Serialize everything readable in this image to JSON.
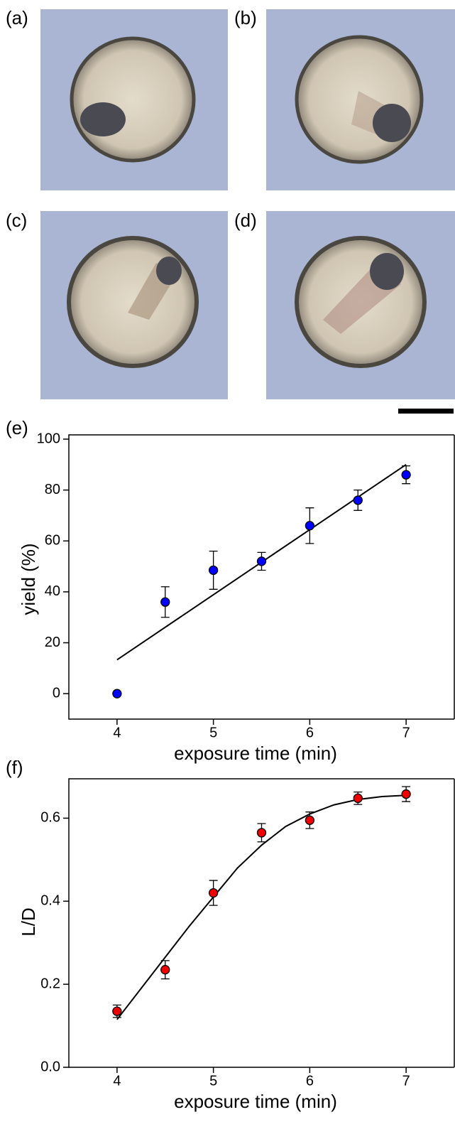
{
  "panel_labels": [
    "(a)",
    "(b)",
    "(c)",
    "(d)"
  ],
  "chart_data": [
    {
      "type": "scatter",
      "panel_label": "(e)",
      "x_label": "exposure time (min)",
      "y_label": "yield (%)",
      "xlim": [
        3.5,
        7.5
      ],
      "xticks": [
        4,
        5,
        6,
        7
      ],
      "ylim": [
        -10,
        100
      ],
      "yticks": [
        0,
        20,
        40,
        60,
        80,
        100
      ],
      "series": [
        {
          "color": "#0000ff",
          "x": [
            4,
            4.5,
            5,
            5.5,
            6,
            6.5,
            7
          ],
          "values": [
            0,
            36,
            48.5,
            52,
            66,
            76,
            86
          ],
          "errors": [
            0,
            6,
            7.5,
            3.5,
            7,
            4,
            3.5
          ]
        }
      ],
      "fit": {
        "x": [
          4,
          7
        ],
        "values": [
          13.3,
          90
        ]
      }
    },
    {
      "type": "scatter",
      "panel_label": "(f)",
      "x_label": "exposure time (min)",
      "y_label": "L/D",
      "xlim": [
        3.5,
        7.5
      ],
      "xticks": [
        4,
        5,
        6,
        7
      ],
      "ylim": [
        0,
        0.7
      ],
      "yticks": [
        {
          "value": 0,
          "label": "0.0"
        },
        0.2,
        0.4,
        0.6
      ],
      "series": [
        {
          "color": "#ee0000",
          "x": [
            4,
            4.5,
            5,
            5.5,
            6,
            6.5,
            7
          ],
          "values": [
            0.135,
            0.235,
            0.42,
            0.565,
            0.595,
            0.648,
            0.658
          ],
          "errors": [
            0.015,
            0.022,
            0.03,
            0.022,
            0.02,
            0.015,
            0.018
          ]
        }
      ],
      "fit": {
        "x": [
          4,
          4.25,
          4.5,
          4.75,
          5,
          5.25,
          5.5,
          5.75,
          6,
          6.25,
          6.5,
          6.75,
          7
        ],
        "values": [
          0.115,
          0.19,
          0.265,
          0.34,
          0.41,
          0.48,
          0.535,
          0.58,
          0.61,
          0.632,
          0.645,
          0.652,
          0.655
        ]
      }
    }
  ]
}
